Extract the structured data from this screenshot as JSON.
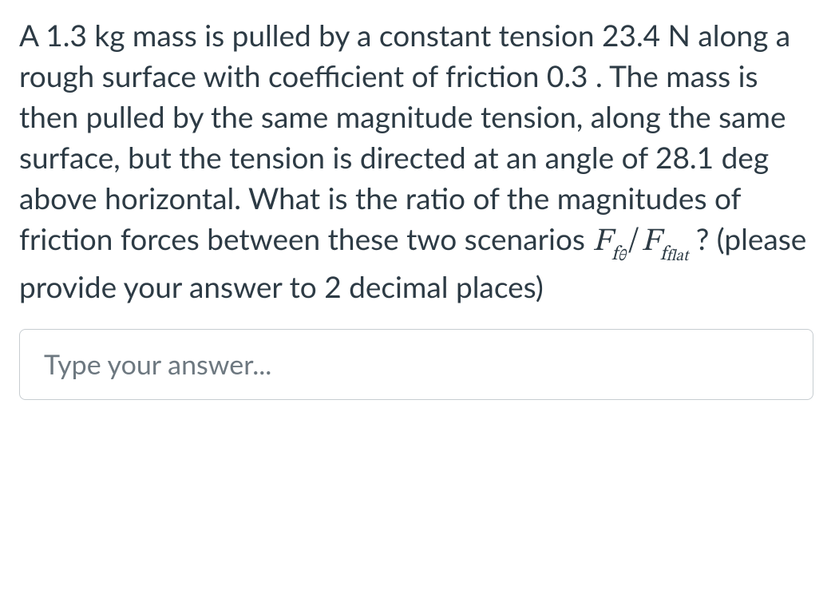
{
  "question": {
    "parts": {
      "p1": "A 1.3 kg mass is pulled by a constant tension 23.4 N along a rough surface with coefficient of friction 0.3 . The mass is then pulled by the same magnitude tension, along the same surface, but the tension is directed at an angle of 28.1 deg above horizontal. What is the ratio of the magnitudes of friction forces between these two scenarios ",
      "p2": " ? (please provide your answer to 2 decimal places)"
    },
    "formula": {
      "F1_main": "F",
      "F1_sub_f": "f",
      "F1_sub_theta": "θ",
      "slash": "/",
      "F2_main": "F",
      "F2_sub_f": "f",
      "F2_sub_flat": "flat"
    },
    "text_color": "#2d3b45",
    "background_color": "#ffffff",
    "fontsize_body": 37,
    "fontsize_formula_main": 40,
    "line_height": 1.38
  },
  "answer_input": {
    "placeholder": "Type your answer...",
    "border_color": "#c7cdd1",
    "border_radius": 8,
    "placeholder_color": "#6d7880",
    "fontsize": 34
  }
}
